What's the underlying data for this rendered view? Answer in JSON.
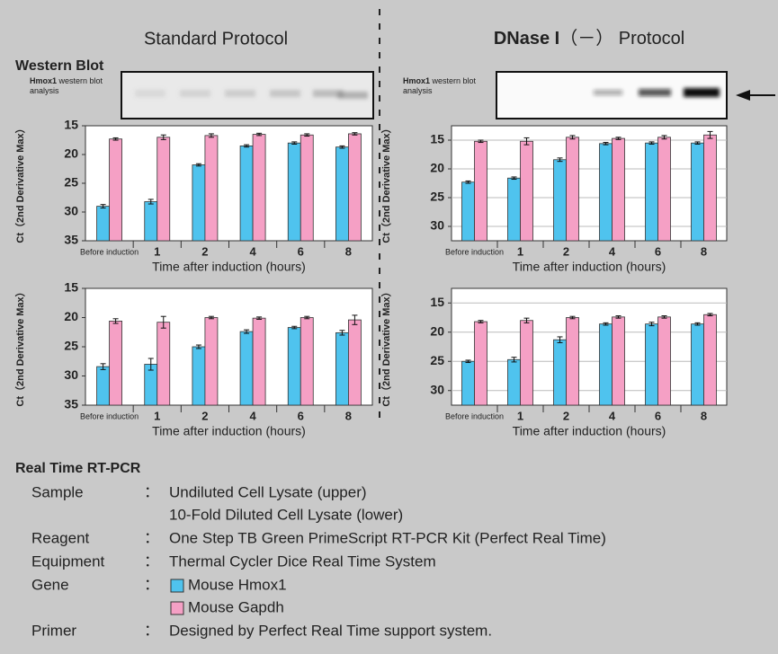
{
  "headers": {
    "left": "Standard Protocol",
    "right_bold": "DNase I",
    "right_rest": "（－） Protocol"
  },
  "western_blot": {
    "title": "Western Blot",
    "panels": [
      {
        "label_bold": "Hmox1",
        "label_rest": "western blot analysis"
      },
      {
        "label_bold": "Hmox1",
        "label_rest": "western blot analysis"
      }
    ]
  },
  "chart_data": [
    {
      "type": "bar",
      "y_label": "Ct（2nd Derivative Max）",
      "x_label": "Time after induction (hours)",
      "categories": [
        "Before induction",
        "1",
        "2",
        "4",
        "6",
        "8"
      ],
      "ylim": [
        35,
        15
      ],
      "yticks": [
        15,
        20,
        25,
        30,
        35
      ],
      "grid": false,
      "series": [
        {
          "name": "Mouse Hmox1",
          "color": "#4fc3ee",
          "values": [
            29,
            28.2,
            21.8,
            18.5,
            18,
            18.7
          ],
          "errors": [
            0.3,
            0.4,
            0.2,
            0.2,
            0.2,
            0.2
          ]
        },
        {
          "name": "Mouse Gapdh",
          "color": "#f5a0c5",
          "values": [
            17.3,
            17,
            16.7,
            16.5,
            16.6,
            16.4
          ],
          "errors": [
            0.2,
            0.4,
            0.3,
            0.2,
            0.2,
            0.2
          ]
        }
      ]
    },
    {
      "type": "bar",
      "y_label": "Ct（2nd Derivative Max）",
      "x_label": "Time after induction (hours)",
      "categories": [
        "Before induction",
        "1",
        "2",
        "4",
        "6",
        "8"
      ],
      "ylim": [
        35,
        15
      ],
      "yticks": [
        15,
        20,
        25,
        30,
        35
      ],
      "grid": false,
      "series": [
        {
          "color": "#4fc3ee",
          "values": [
            28.4,
            28,
            25,
            22.4,
            21.7,
            22.6
          ],
          "errors": [
            0.5,
            1.0,
            0.3,
            0.3,
            0.2,
            0.4
          ]
        },
        {
          "color": "#f5a0c5",
          "values": [
            20.6,
            20.8,
            20,
            20.1,
            20,
            20.4
          ],
          "errors": [
            0.4,
            1.0,
            0.2,
            0.2,
            0.2,
            0.8
          ]
        }
      ]
    },
    {
      "type": "bar",
      "y_label": "Ct（2nd Derivative Max）",
      "x_label": "Time after induction (hours)",
      "categories": [
        "Before induction",
        "1",
        "2",
        "4",
        "6",
        "8"
      ],
      "ylim": [
        32.5,
        12.5
      ],
      "yticks": [
        15,
        20,
        25,
        30
      ],
      "grid": true,
      "series": [
        {
          "color": "#4fc3ee",
          "values": [
            22.3,
            21.6,
            18.4,
            15.6,
            15.5,
            15.5
          ],
          "errors": [
            0.2,
            0.2,
            0.3,
            0.2,
            0.2,
            0.2
          ]
        },
        {
          "color": "#f5a0c5",
          "values": [
            15.2,
            15.2,
            14.5,
            14.7,
            14.5,
            14.1
          ],
          "errors": [
            0.2,
            0.6,
            0.3,
            0.2,
            0.3,
            0.6
          ]
        }
      ]
    },
    {
      "type": "bar",
      "y_label": "Ct（2nd Derivative Max）",
      "x_label": "Time after induction (hours)",
      "categories": [
        "Before induction",
        "1",
        "2",
        "4",
        "6",
        "8"
      ],
      "ylim": [
        32.5,
        12.5
      ],
      "yticks": [
        15,
        20,
        25,
        30
      ],
      "grid": true,
      "series": [
        {
          "color": "#4fc3ee",
          "values": [
            25,
            24.7,
            21.3,
            18.6,
            18.6,
            18.6
          ],
          "errors": [
            0.2,
            0.4,
            0.5,
            0.2,
            0.3,
            0.2
          ]
        },
        {
          "color": "#f5a0c5",
          "values": [
            18.2,
            18,
            17.5,
            17.4,
            17.4,
            17
          ],
          "errors": [
            0.2,
            0.4,
            0.2,
            0.2,
            0.2,
            0.2
          ]
        }
      ]
    }
  ],
  "rt_pcr": {
    "title": "Real Time RT-PCR",
    "rows": [
      {
        "label": "Sample",
        "sep": "：",
        "values": [
          "Undiluted Cell Lysate (upper)",
          "10-Fold Diluted Cell Lysate (lower)"
        ]
      },
      {
        "label": "Reagent",
        "sep": "：",
        "values": [
          "One Step TB Green PrimeScript RT-PCR Kit (Perfect Real Time)"
        ]
      },
      {
        "label": "Equipment",
        "sep": "：",
        "values": [
          "Thermal Cycler Dice Real Time System"
        ]
      },
      {
        "label": "Gene",
        "sep": "："
      },
      {
        "label": "Primer",
        "sep": "：",
        "values": [
          "Designed by Perfect Real Time support system."
        ]
      }
    ]
  }
}
